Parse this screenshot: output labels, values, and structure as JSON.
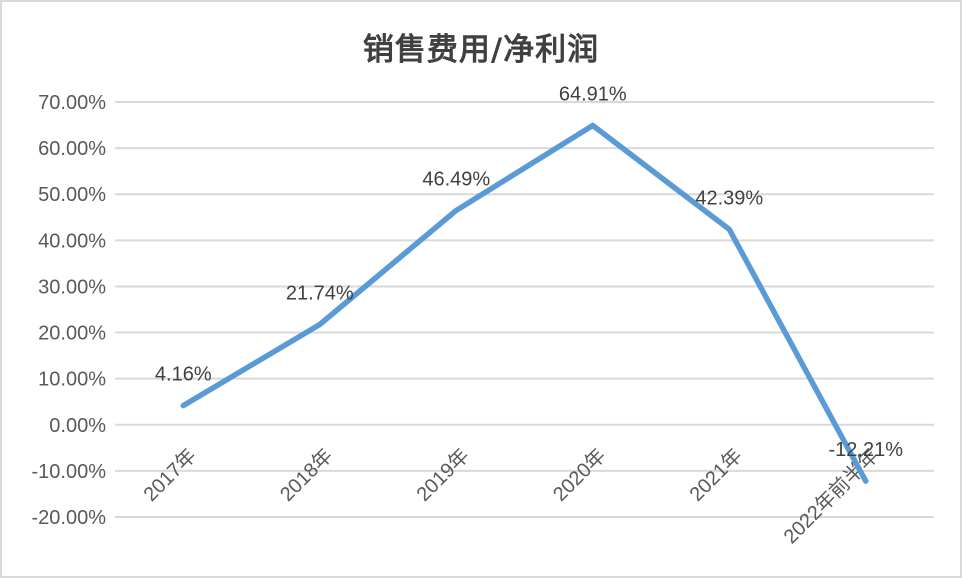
{
  "chart": {
    "title": "销售费用/净利润",
    "colors": {
      "line": "#5B9BD5",
      "gridline": "#D9D9D9",
      "axis_text": "#595959",
      "data_label_text": "#404040",
      "title_text": "#404040",
      "border": "#D9D9D9",
      "background": "#FFFFFF"
    }
  },
  "chart_data": {
    "type": "line",
    "title": "销售费用/净利润",
    "categories": [
      "2017年",
      "2018年",
      "2019年",
      "2020年",
      "2021年",
      "2022年前半年"
    ],
    "series": [
      {
        "name": "销售费用/净利润",
        "values": [
          4.16,
          21.74,
          46.49,
          64.91,
          42.39,
          -12.21
        ]
      }
    ],
    "data_labels": [
      "4.16%",
      "21.74%",
      "46.49%",
      "64.91%",
      "42.39%",
      "-12.21%"
    ],
    "xlabel": "",
    "ylabel": "",
    "ylim": [
      -20,
      70
    ],
    "ytick_step": 10,
    "ytick_labels": [
      "70.00%",
      "60.00%",
      "50.00%",
      "40.00%",
      "30.00%",
      "20.00%",
      "10.00%",
      "0.00%",
      "-10.00%",
      "-20.00%"
    ],
    "grid": true,
    "legend_position": "none",
    "x_label_rotation_deg": 45,
    "data_label_position": "above"
  }
}
